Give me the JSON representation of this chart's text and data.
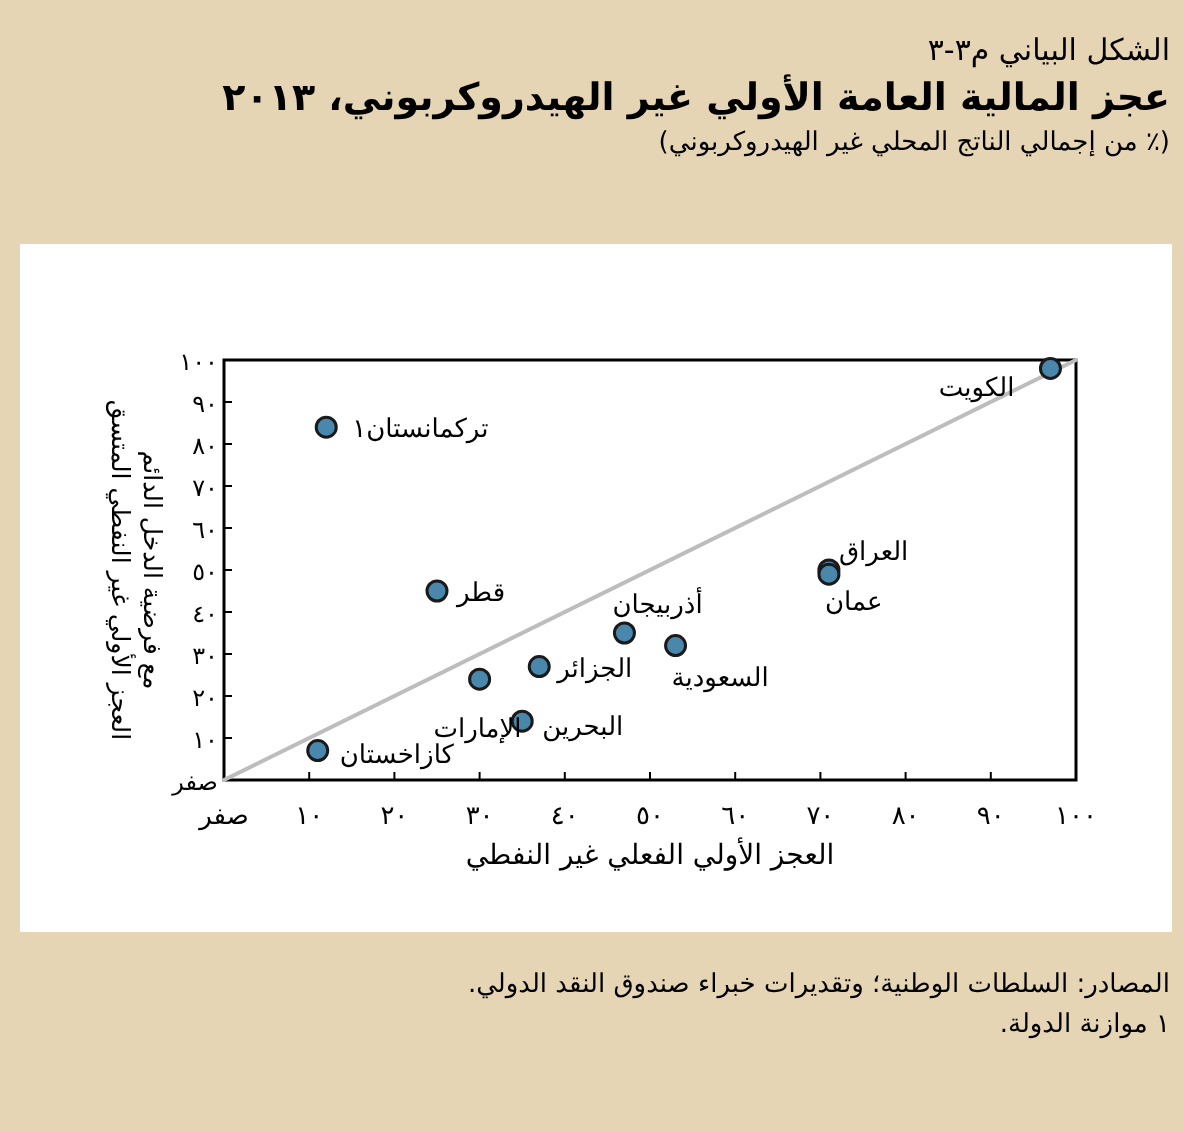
{
  "chart_data": {
    "type": "scatter",
    "title": "عجز المالية العامة الأولي غير الهيدروكربوني، ٢٠١٣",
    "subtitle": "(٪ من إجمالي الناتج المحلي غير الهيدروكربوني)",
    "xlabel": "العجز الأولي الفعلي غير النفطي",
    "ylabel": "العجز الأولي غير النفطي المتسق\nمع فرضية الدخل الدائم",
    "xlim": [
      0,
      100
    ],
    "ylim": [
      0,
      100
    ],
    "xticks": [
      {
        "value": 0,
        "label": "صفر"
      },
      {
        "value": 10,
        "label": "١٠"
      },
      {
        "value": 20,
        "label": "٢٠"
      },
      {
        "value": 30,
        "label": "٣٠"
      },
      {
        "value": 40,
        "label": "٤٠"
      },
      {
        "value": 50,
        "label": "٥٠"
      },
      {
        "value": 60,
        "label": "٦٠"
      },
      {
        "value": 70,
        "label": "٧٠"
      },
      {
        "value": 80,
        "label": "٨٠"
      },
      {
        "value": 90,
        "label": "٩٠"
      },
      {
        "value": 100,
        "label": "١٠٠"
      }
    ],
    "yticks": [
      {
        "value": 0,
        "label": "صفر"
      },
      {
        "value": 10,
        "label": "١٠"
      },
      {
        "value": 20,
        "label": "٢٠"
      },
      {
        "value": 30,
        "label": "٣٠"
      },
      {
        "value": 40,
        "label": "٤٠"
      },
      {
        "value": 50,
        "label": "٥٠"
      },
      {
        "value": 60,
        "label": "٦٠"
      },
      {
        "value": 70,
        "label": "٧٠"
      },
      {
        "value": 80,
        "label": "٨٠"
      },
      {
        "value": 90,
        "label": "٩٠"
      },
      {
        "value": 100,
        "label": "١٠٠"
      }
    ],
    "marker": "circle",
    "series": [
      {
        "type": "line",
        "x": [
          0,
          100
        ],
        "values": [
          0,
          100
        ],
        "color": "#bdbdbd",
        "marker": "none"
      },
      {
        "x": [
          97,
          12,
          25,
          71,
          71,
          47,
          53,
          37,
          30,
          35,
          11
        ],
        "values": [
          98,
          84,
          45,
          50,
          49,
          35,
          32,
          27,
          24,
          14,
          7
        ],
        "color": "#4a87ad"
      }
    ],
    "annotations": [
      "الشكل البياني م٣-٣",
      {
        "text": "الكويت",
        "x": 97,
        "y": 98
      },
      {
        "text": "تركمانستان١",
        "x": 12,
        "y": 84
      },
      {
        "text": "قطر",
        "x": 25,
        "y": 45
      },
      {
        "text": "العراق",
        "x": 71,
        "y": 50
      },
      {
        "text": "عمان",
        "x": 71,
        "y": 49
      },
      {
        "text": "أذربيجان",
        "x": 47,
        "y": 35
      },
      {
        "text": "السعودية",
        "x": 53,
        "y": 32
      },
      {
        "text": "الجزائر",
        "x": 37,
        "y": 27
      },
      {
        "text": "الإمارات",
        "x": 30,
        "y": 24
      },
      {
        "text": "البحرين",
        "x": 35,
        "y": 14
      },
      {
        "text": "كازاخستان",
        "x": 11,
        "y": 7
      },
      "المصادر: السلطات الوطنية؛ وتقديرات خبراء صندوق النقد الدولي.",
      "١ موازنة الدولة."
    ]
  }
}
